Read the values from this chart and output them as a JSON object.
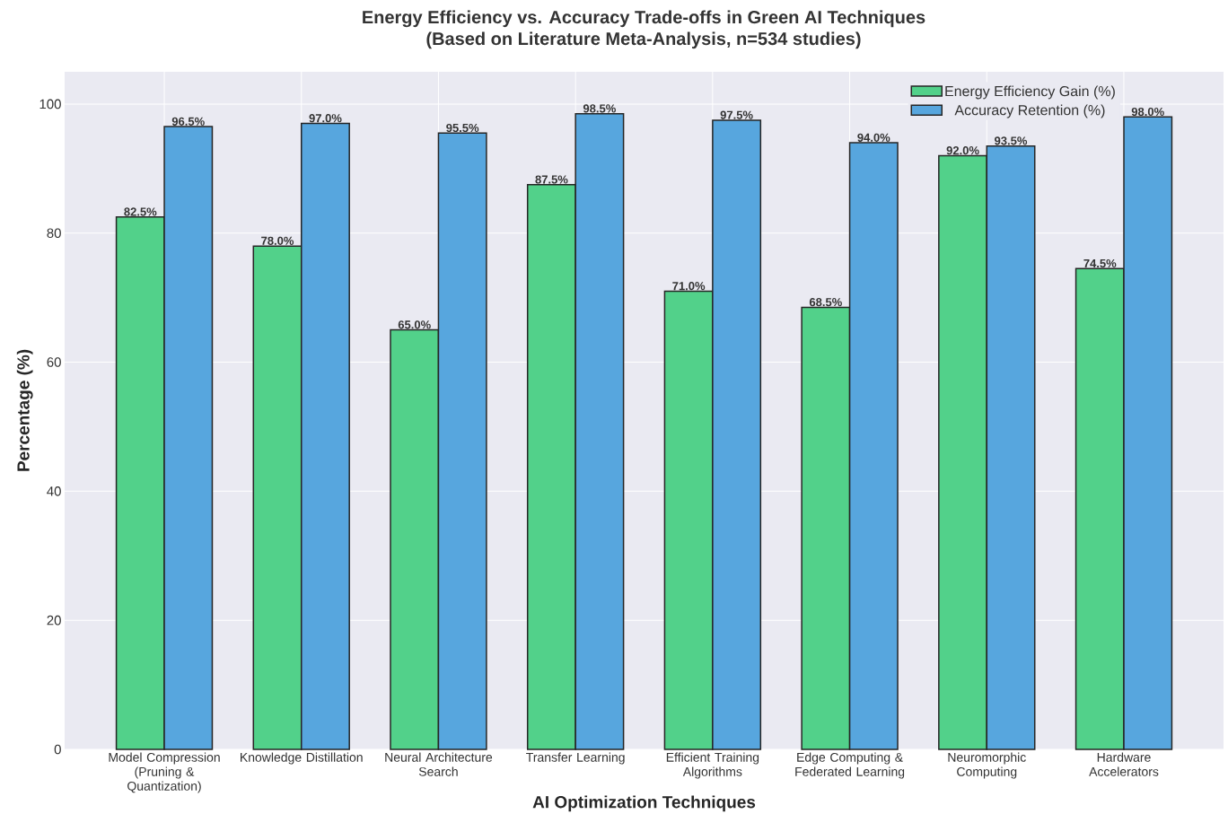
{
  "chart_data": {
    "type": "bar",
    "title": "Energy Efficiency vs. Accuracy Trade-offs in Green AI Techniques",
    "subtitle": "(Based on Literature Meta-Analysis, n=534 studies)",
    "xlabel": "AI Optimization Techniques",
    "ylabel": "Percentage (%)",
    "categories": [
      "Model Compression (Pruning & Quantization)",
      "Knowledge Distillation",
      "Neural Architecture Search",
      "Transfer Learning",
      "Efficient Training Algorithms",
      "Edge Computing & Federated Learning",
      "Neuromorphic Computing",
      "Hardware Accelerators"
    ],
    "series": [
      {
        "name": "Energy Efficiency Gain (%)",
        "color": "#52d18a",
        "values": [
          82.5,
          78.0,
          65.0,
          87.5,
          71.0,
          68.5,
          92.0,
          74.5
        ],
        "value_labels": [
          "82.5%",
          "78.0%",
          "65.0%",
          "87.5%",
          "71.0%",
          "68.5%",
          "92.0%",
          "74.5%"
        ]
      },
      {
        "name": "Accuracy Retention (%)",
        "color": "#57a6de",
        "values": [
          96.5,
          97.0,
          95.5,
          98.5,
          97.5,
          94.0,
          93.5,
          98.0
        ],
        "value_labels": [
          "96.5%",
          "97.0%",
          "95.5%",
          "98.5%",
          "97.5%",
          "94.0%",
          "93.5%",
          "98.0%"
        ]
      }
    ],
    "ylim": [
      0,
      105
    ],
    "yticks": [
      0,
      20,
      40,
      60,
      80,
      100
    ],
    "grid": true,
    "legend": "top right"
  }
}
